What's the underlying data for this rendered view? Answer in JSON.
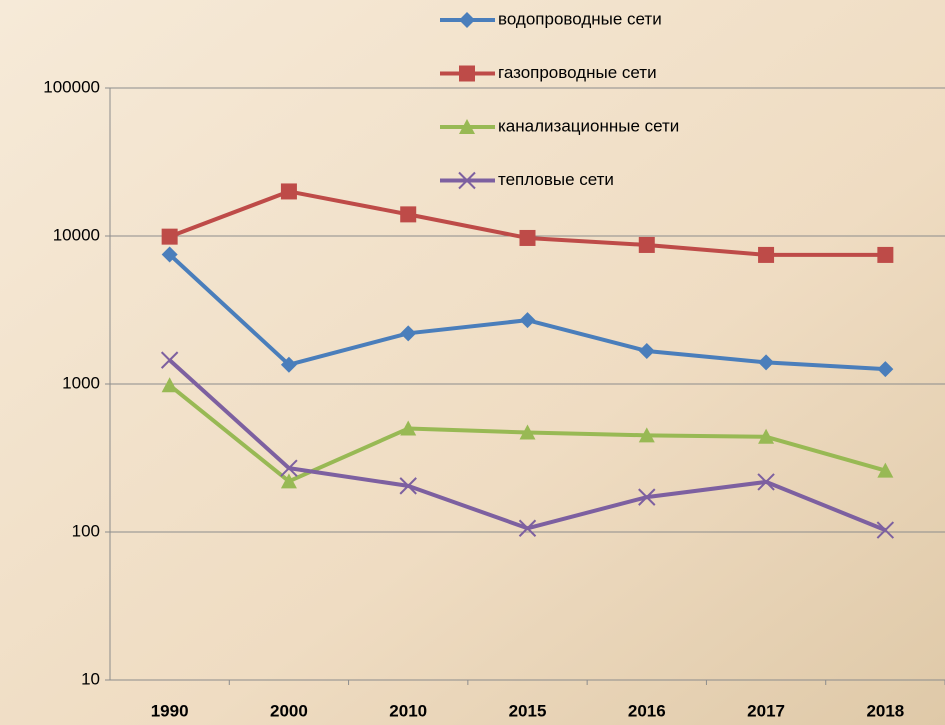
{
  "chart_data": {
    "type": "line",
    "categories": [
      "1990",
      "2000",
      "2010",
      "2015",
      "2016",
      "2017",
      "2018"
    ],
    "series": [
      {
        "name": "водопроводные сети",
        "color": "#4a7ebb",
        "marker": "diamond",
        "values": [
          7500,
          1350,
          2200,
          2700,
          1670,
          1400,
          1260
        ]
      },
      {
        "name": "газопроводные сети",
        "color": "#be4b48",
        "marker": "square",
        "values": [
          9900,
          20000,
          14000,
          9700,
          8700,
          7450,
          7450
        ]
      },
      {
        "name": "канализационные сети",
        "color": "#98b954",
        "marker": "triangle",
        "values": [
          980,
          220,
          500,
          470,
          450,
          440,
          260
        ]
      },
      {
        "name": "тепловые сети",
        "color": "#7d60a0",
        "marker": "x",
        "values": [
          1450,
          270,
          205,
          106,
          172,
          218,
          103
        ]
      }
    ],
    "ylim": [
      10,
      100000
    ],
    "yticks": [
      10,
      100,
      1000,
      10000,
      100000
    ],
    "log_y": true,
    "grid": true,
    "legend": "top"
  }
}
